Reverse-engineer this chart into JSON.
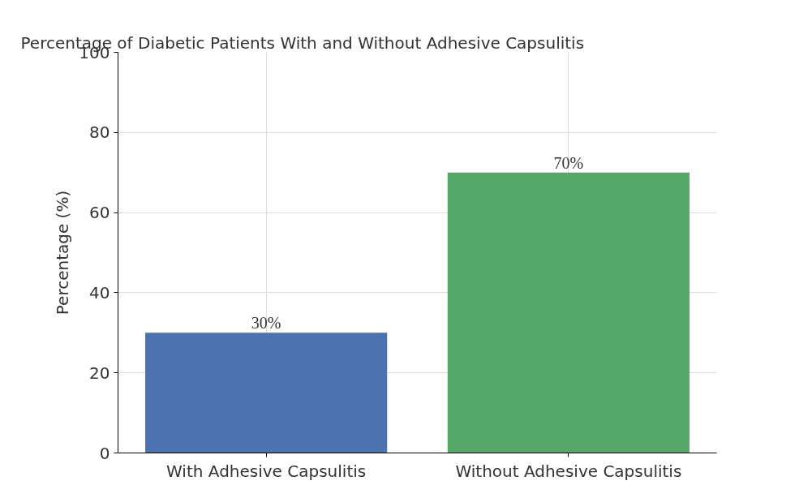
{
  "chart_data": {
    "type": "bar",
    "title": "Percentage of Diabetic Patients With and Without Adhesive Capsulitis",
    "ylabel": "Percentage (%)",
    "categories": [
      "With Adhesive Capsulitis",
      "Without Adhesive Capsulitis"
    ],
    "values": [
      30,
      70
    ],
    "colors": [
      "#4c72b0",
      "#55a868"
    ],
    "value_labels": [
      "30%",
      "70%"
    ],
    "ylim": [
      0,
      100
    ],
    "yticks": [
      0,
      20,
      40,
      60,
      80,
      100
    ],
    "grid": true
  }
}
